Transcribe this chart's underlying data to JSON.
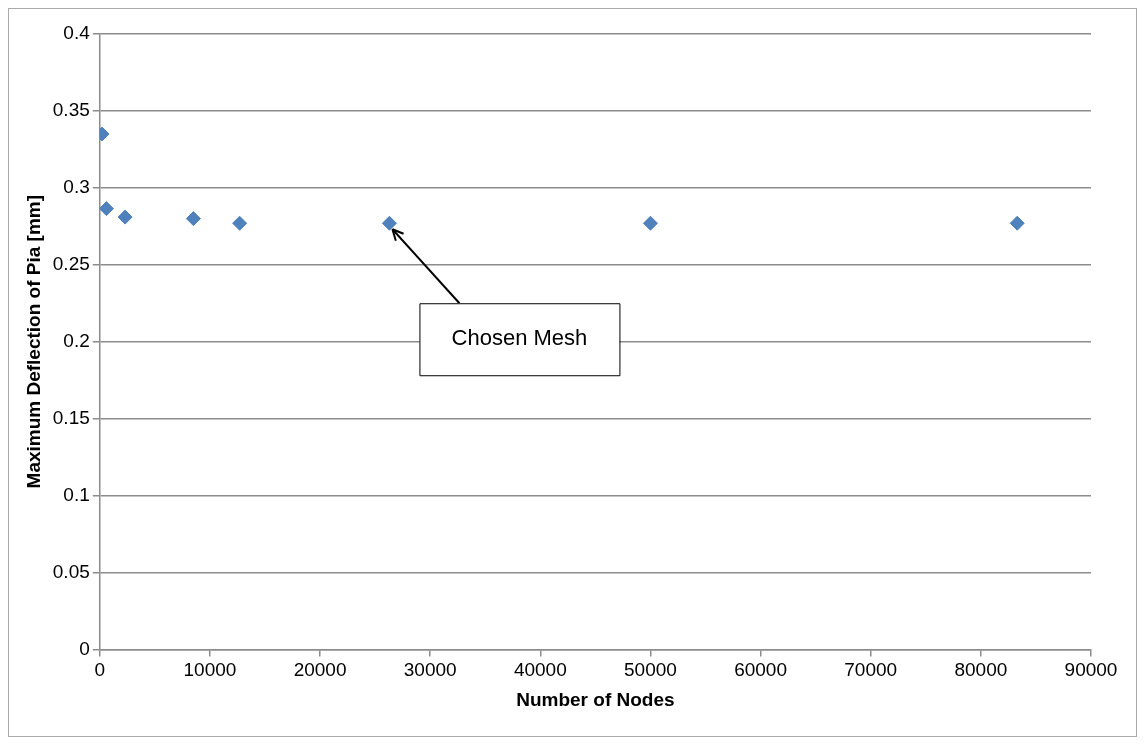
{
  "chart_data": {
    "type": "scatter",
    "xlabel": "Number of Nodes",
    "ylabel": "Maximum Deflection of Pia [mm]",
    "x": [
      200,
      600,
      2300,
      8500,
      12700,
      26300,
      50000,
      83300
    ],
    "series": [
      {
        "color": "#4f81bd",
        "values": [
          0.335,
          0.2865,
          0.281,
          0.28,
          0.277,
          0.277,
          0.277,
          0.277
        ]
      }
    ],
    "xlim": [
      0,
      90000
    ],
    "xticks": [
      0,
      10000,
      20000,
      30000,
      40000,
      50000,
      60000,
      70000,
      80000,
      90000
    ],
    "ylim": [
      0,
      0.4
    ],
    "yticks": [
      0,
      0.05,
      0.1,
      0.15,
      0.2,
      0.25,
      0.3,
      0.35,
      0.4
    ],
    "grid": "y",
    "legend": false,
    "marker": "diamond",
    "annotations": [
      {
        "text": "Chosen Mesh",
        "x": 26300,
        "y": 0.277
      }
    ]
  }
}
